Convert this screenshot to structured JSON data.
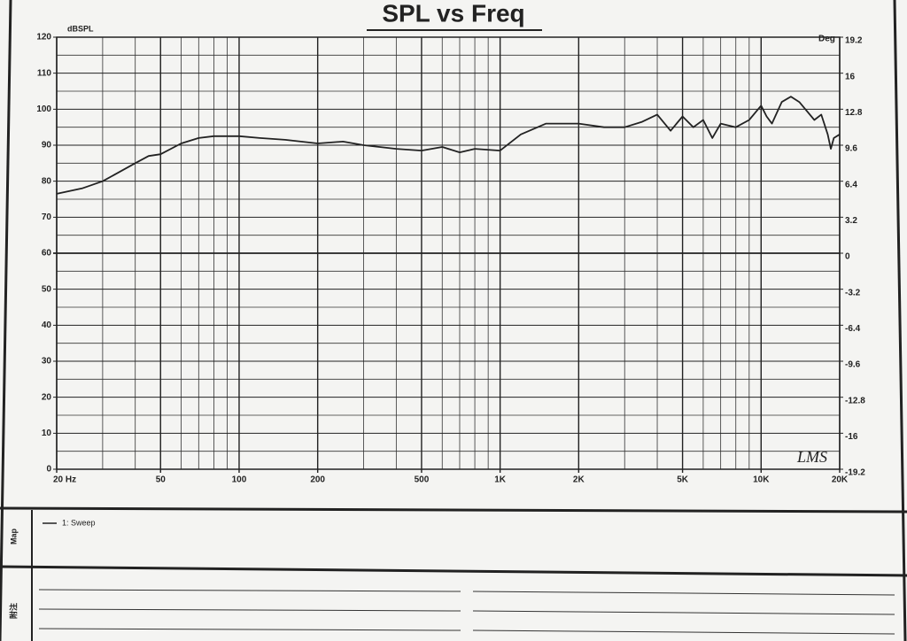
{
  "chart_data": {
    "type": "line",
    "title": "SPL vs Freq",
    "y_label": "dBSPL",
    "y2_label": "Deg",
    "xscale": "log",
    "grid": true,
    "x": [
      20,
      25,
      30,
      40,
      45,
      50,
      60,
      70,
      80,
      100,
      120,
      150,
      200,
      250,
      300,
      400,
      500,
      600,
      700,
      800,
      1000,
      1200,
      1500,
      2000,
      2500,
      3000,
      3500,
      4000,
      4500,
      5000,
      5500,
      6000,
      6500,
      7000,
      8000,
      9000,
      10000,
      10500,
      11000,
      12000,
      13000,
      14000,
      16000,
      17000,
      18000,
      18500,
      19000,
      20000
    ],
    "series": [
      {
        "name": "1: Sweep",
        "color": "#222222",
        "values": [
          76.5,
          78,
          80,
          85,
          87,
          87.5,
          90.5,
          92,
          92.5,
          92.5,
          92,
          91.5,
          90.5,
          91,
          90,
          89,
          88.5,
          89.5,
          88,
          89,
          88.5,
          93,
          96,
          96,
          95,
          95,
          96.5,
          98.5,
          94,
          98,
          95,
          97,
          92,
          96,
          95,
          97,
          101,
          98,
          96,
          102,
          103.5,
          102,
          97,
          98.5,
          93,
          89,
          92,
          93
        ]
      }
    ],
    "xlim": [
      20,
      20000
    ],
    "xticks": [
      {
        "value": 20,
        "label": "20 Hz"
      },
      50,
      100,
      200,
      500,
      {
        "value": 1000,
        "label": "1K"
      },
      {
        "value": 2000,
        "label": "2K"
      },
      {
        "value": 5000,
        "label": "5K"
      },
      {
        "value": 10000,
        "label": "10K"
      },
      {
        "value": 20000,
        "label": "20K"
      }
    ],
    "ylim": [
      0,
      120
    ],
    "yticks": [
      0,
      10,
      20,
      30,
      40,
      50,
      60,
      70,
      80,
      90,
      100,
      110,
      120
    ],
    "y2lim": [
      -19.2,
      19.2
    ],
    "y2ticks": [
      -19.2,
      -16,
      -12.8,
      -9.6,
      -6.4,
      -3.2,
      0,
      3.2,
      6.4,
      9.6,
      12.8,
      16,
      19.2
    ],
    "annotations": [
      "LMS"
    ],
    "panel_labels": [
      "Map",
      "附注"
    ]
  }
}
